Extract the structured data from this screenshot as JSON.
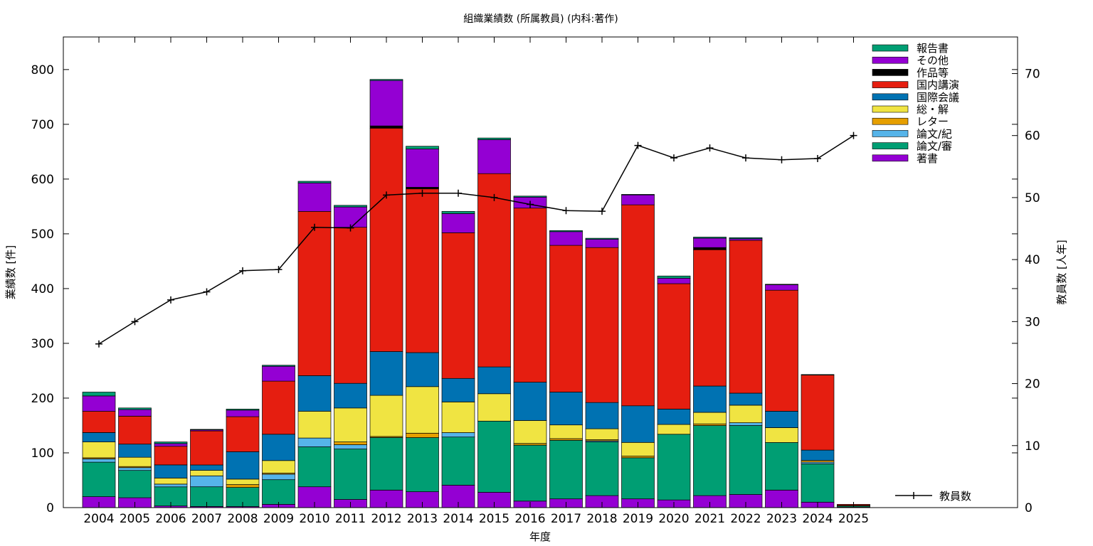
{
  "chart_data": {
    "type": "bar",
    "stacked": true,
    "title": "組織業績数 (所属教員) (内科:著作)",
    "xlabel": "年度",
    "ylabel": "業績数 [件]",
    "y2label": "教員数 [人年]",
    "categories": [
      "2004",
      "2005",
      "2006",
      "2007",
      "2008",
      "2009",
      "2010",
      "2011",
      "2012",
      "2013",
      "2014",
      "2015",
      "2016",
      "2017",
      "2018",
      "2019",
      "2020",
      "2021",
      "2022",
      "2023",
      "2024",
      "2025"
    ],
    "ylim": [
      0,
      860
    ],
    "y2lim": [
      0,
      75.9
    ],
    "yticks": [
      0,
      100,
      200,
      300,
      400,
      500,
      600,
      700,
      800
    ],
    "y2ticks": [
      0,
      10,
      20,
      30,
      40,
      50,
      60,
      70
    ],
    "grid": false,
    "legend_position": "top-right",
    "series": [
      {
        "name": "著書",
        "color": "#9400d3",
        "values": [
          20,
          18,
          3,
          2,
          2,
          6,
          38,
          15,
          32,
          29,
          41,
          28,
          12,
          16,
          22,
          16,
          14,
          22,
          24,
          32,
          10,
          1
        ]
      },
      {
        "name": "論文/審",
        "color": "#009e73",
        "values": [
          63,
          50,
          35,
          36,
          35,
          45,
          73,
          92,
          96,
          99,
          88,
          130,
          102,
          107,
          98,
          75,
          120,
          128,
          126,
          87,
          70,
          2
        ]
      },
      {
        "name": "論文/紀",
        "color": "#56b4e9",
        "values": [
          6,
          5,
          5,
          20,
          0,
          10,
          16,
          8,
          0,
          0,
          8,
          0,
          0,
          0,
          2,
          0,
          0,
          0,
          5,
          0,
          3,
          0
        ]
      },
      {
        "name": "レター",
        "color": "#e69f00",
        "values": [
          2,
          2,
          0,
          0,
          5,
          2,
          0,
          5,
          2,
          8,
          0,
          0,
          3,
          3,
          2,
          3,
          0,
          3,
          0,
          0,
          3,
          1
        ]
      },
      {
        "name": "総・解",
        "color": "#f0e442",
        "values": [
          29,
          17,
          11,
          10,
          10,
          23,
          49,
          62,
          75,
          85,
          56,
          50,
          42,
          25,
          20,
          25,
          18,
          21,
          32,
          27,
          0,
          0
        ]
      },
      {
        "name": "国際会議",
        "color": "#0072b2",
        "values": [
          17,
          24,
          24,
          10,
          50,
          48,
          65,
          45,
          80,
          62,
          43,
          49,
          70,
          60,
          48,
          67,
          28,
          48,
          22,
          30,
          19,
          0
        ]
      },
      {
        "name": "国内講演",
        "color": "#e51e10",
        "values": [
          39,
          51,
          34,
          62,
          64,
          97,
          300,
          285,
          408,
          299,
          266,
          353,
          318,
          268,
          283,
          367,
          229,
          249,
          279,
          221,
          137,
          2
        ]
      },
      {
        "name": "作品等",
        "color": "#000000",
        "values": [
          0,
          0,
          0,
          0,
          0,
          0,
          0,
          0,
          4,
          3,
          0,
          0,
          0,
          0,
          0,
          0,
          0,
          4,
          0,
          0,
          0,
          0
        ]
      },
      {
        "name": "その他",
        "color": "#9400d3",
        "values": [
          28,
          12,
          5,
          2,
          12,
          27,
          52,
          37,
          83,
          70,
          35,
          62,
          20,
          25,
          15,
          18,
          10,
          17,
          3,
          10,
          0,
          0
        ]
      },
      {
        "name": "報告書",
        "color": "#009e73",
        "values": [
          7,
          3,
          3,
          1,
          2,
          2,
          3,
          3,
          2,
          5,
          4,
          3,
          2,
          2,
          2,
          1,
          4,
          2,
          2,
          1,
          1,
          0
        ]
      }
    ],
    "line": {
      "name": "教員数",
      "axis": "y2",
      "color": "#000000",
      "values": [
        26.4,
        30.0,
        33.5,
        34.8,
        38.2,
        38.4,
        45.2,
        45.1,
        50.4,
        50.7,
        50.7,
        50.0,
        48.9,
        47.9,
        47.8,
        58.4,
        56.4,
        58.0,
        56.4,
        56.1,
        56.3,
        60.0
      ]
    }
  }
}
